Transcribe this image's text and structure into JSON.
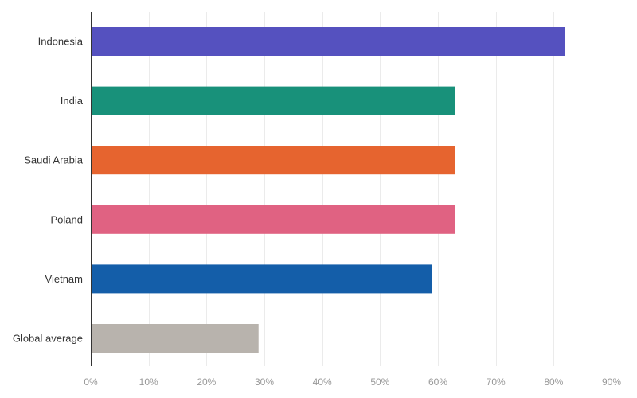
{
  "chart_data": {
    "type": "bar",
    "orientation": "horizontal",
    "title": "",
    "xlabel": "",
    "ylabel": "",
    "unit": "%",
    "categories": [
      "Indonesia",
      "India",
      "Saudi Arabia",
      "Poland",
      "Vietnam",
      "Global average"
    ],
    "values": [
      82,
      63,
      63,
      63,
      59,
      29
    ],
    "colors": [
      "#5551bf",
      "#18917a",
      "#e6642f",
      "#e06282",
      "#145ea9",
      "#b8b3ad"
    ],
    "xlim": [
      0,
      90
    ],
    "x_ticks": [
      0,
      10,
      20,
      30,
      40,
      50,
      60,
      70,
      80,
      90
    ],
    "x_tick_labels": [
      "0%",
      "10%",
      "20%",
      "30%",
      "40%",
      "50%",
      "60%",
      "70%",
      "80%",
      "90%"
    ],
    "grid": true,
    "legend": "none"
  }
}
